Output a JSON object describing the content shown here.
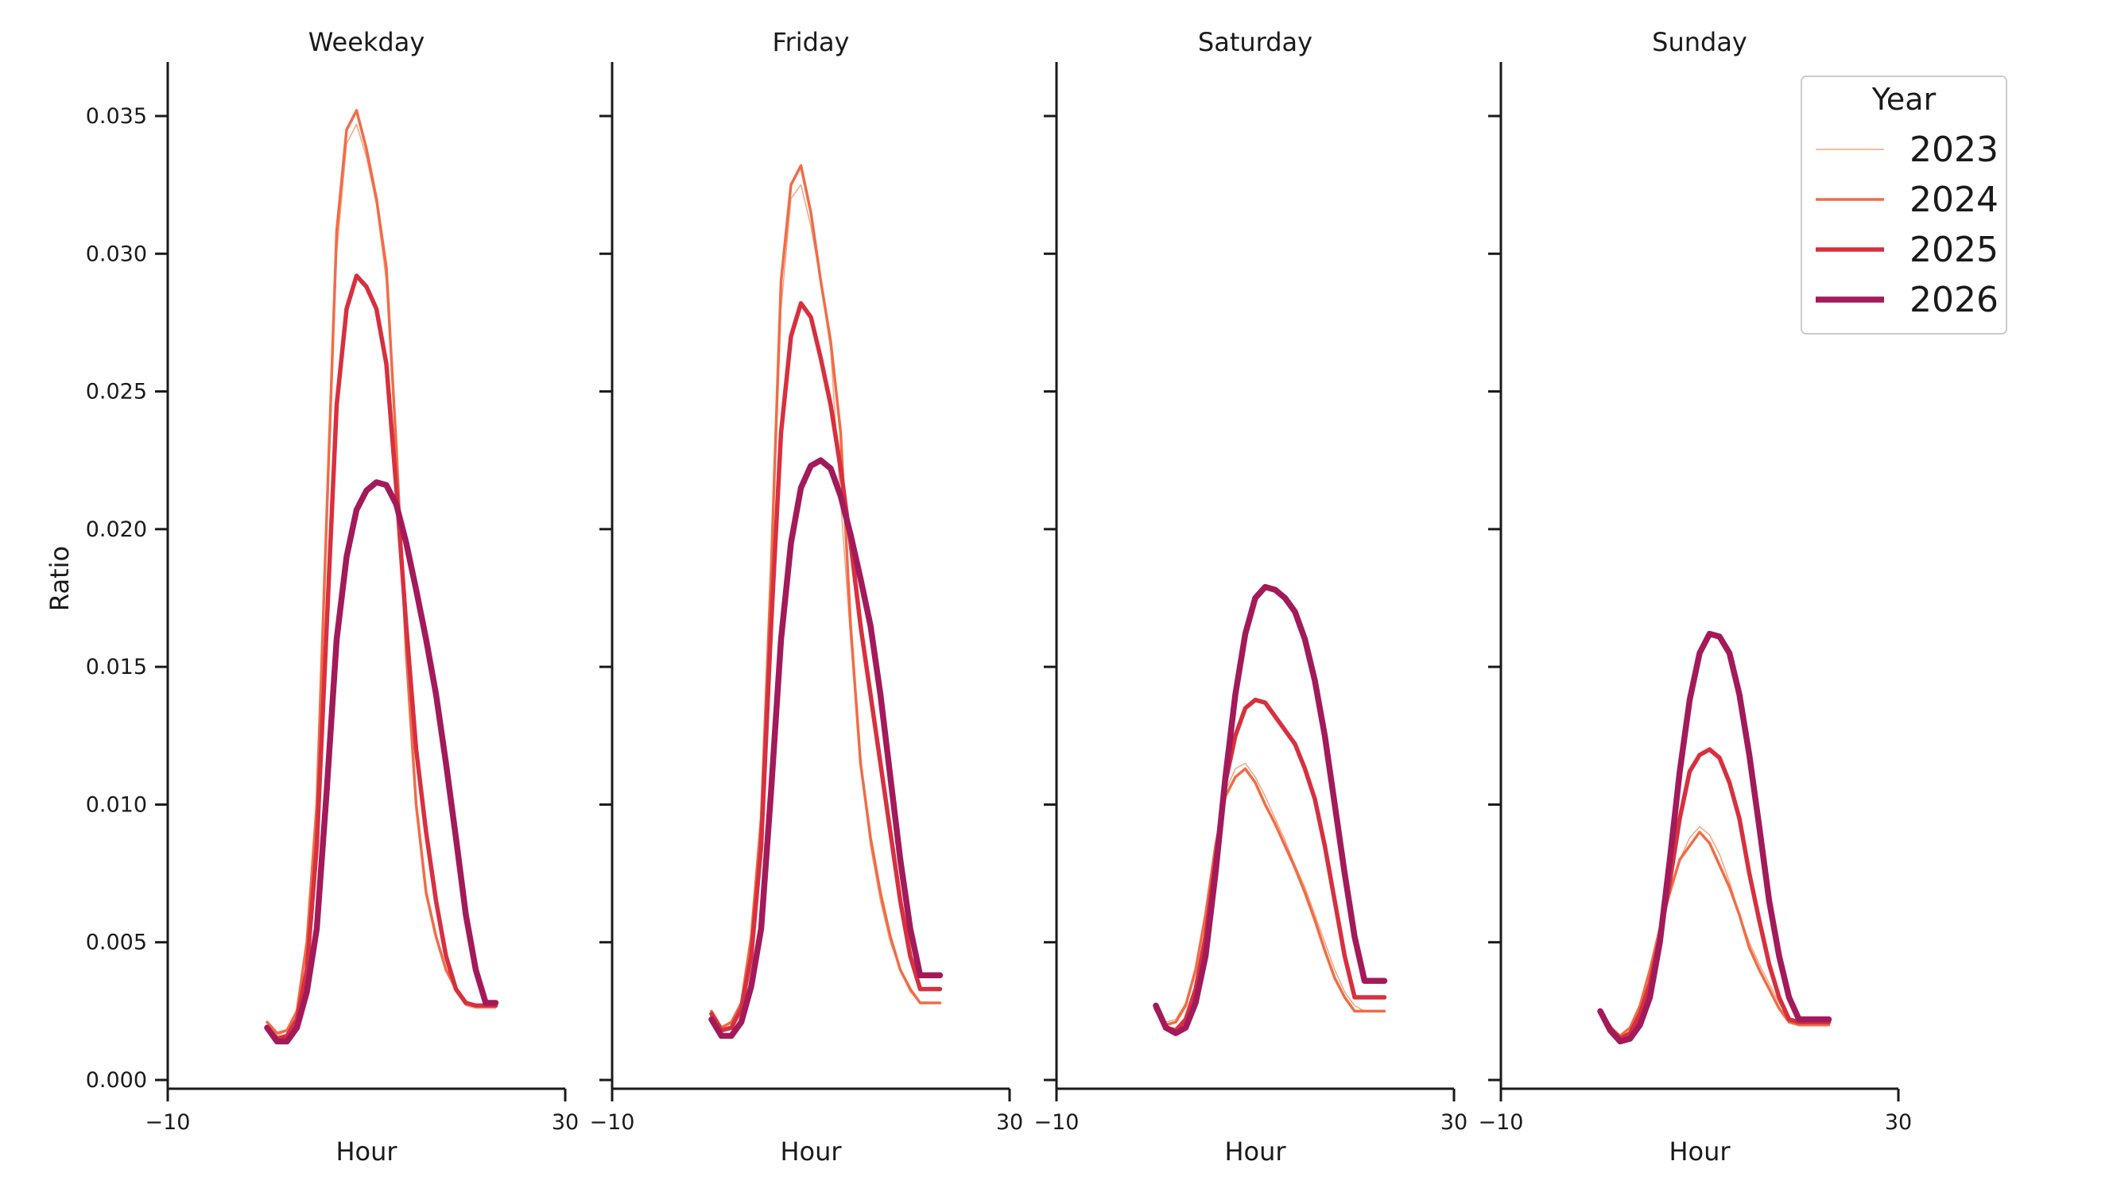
{
  "chart_data": {
    "type": "line",
    "ylabel": "Ratio",
    "ylim": [
      -0.0012,
      0.037
    ],
    "xlim": [
      -10,
      30
    ],
    "yticks": [
      {
        "value": 0.0,
        "label": "0.000"
      },
      {
        "value": 0.005,
        "label": "0.005"
      },
      {
        "value": 0.01,
        "label": "0.010"
      },
      {
        "value": 0.015,
        "label": "0.015"
      },
      {
        "value": 0.02,
        "label": "0.020"
      },
      {
        "value": 0.025,
        "label": "0.025"
      },
      {
        "value": 0.03,
        "label": "0.030"
      },
      {
        "value": 0.035,
        "label": "0.035"
      }
    ],
    "xticks": [
      {
        "value": -10,
        "label": "−10"
      },
      {
        "value": 30,
        "label": "30"
      }
    ],
    "legend": {
      "title": "Year",
      "position": "top-right",
      "entries": [
        {
          "name": "2023",
          "color": "#f4a582",
          "width": 1.5
        },
        {
          "name": "2024",
          "color": "#ef6d47",
          "width": 3.5
        },
        {
          "name": "2025",
          "color": "#d7303f",
          "width": 5.5
        },
        {
          "name": "2026",
          "color": "#a31a5a",
          "width": 7.5
        }
      ]
    },
    "panels": [
      {
        "title": "Weekday",
        "xlabel": "Hour",
        "x": [
          0,
          1,
          2,
          3,
          4,
          5,
          6,
          7,
          8,
          9,
          10,
          11,
          12,
          13,
          14,
          15,
          16,
          17,
          18,
          19,
          20,
          21,
          22,
          23
        ],
        "series": [
          {
            "name": "2023",
            "values": [
              0.002,
              0.0016,
              0.0018,
              0.0025,
              0.005,
              0.01,
              0.02,
              0.03,
              0.034,
              0.0347,
              0.0335,
              0.0318,
              0.029,
              0.023,
              0.016,
              0.01,
              0.0068,
              0.0052,
              0.004,
              0.0032,
              0.0027,
              0.0026,
              0.0026,
              0.0026
            ]
          },
          {
            "name": "2024",
            "values": [
              0.0021,
              0.0017,
              0.0018,
              0.0025,
              0.005,
              0.01,
              0.0205,
              0.0308,
              0.0345,
              0.0352,
              0.0338,
              0.032,
              0.0295,
              0.023,
              0.0155,
              0.01,
              0.0068,
              0.0052,
              0.004,
              0.0033,
              0.0028,
              0.0027,
              0.0027,
              0.0027
            ]
          },
          {
            "name": "2025",
            "values": [
              0.0019,
              0.0015,
              0.0016,
              0.0022,
              0.004,
              0.0085,
              0.0165,
              0.0245,
              0.028,
              0.0292,
              0.0288,
              0.028,
              0.026,
              0.0215,
              0.0165,
              0.012,
              0.009,
              0.0065,
              0.0045,
              0.0033,
              0.0028,
              0.0027,
              0.0027,
              0.0027
            ]
          },
          {
            "name": "2026",
            "values": [
              0.0019,
              0.0014,
              0.0014,
              0.0019,
              0.0032,
              0.0055,
              0.0105,
              0.016,
              0.019,
              0.0207,
              0.0214,
              0.0217,
              0.0216,
              0.0209,
              0.0195,
              0.0178,
              0.016,
              0.014,
              0.0115,
              0.0088,
              0.006,
              0.004,
              0.0028,
              0.0028
            ]
          }
        ]
      },
      {
        "title": "Friday",
        "xlabel": "Hour",
        "x": [
          0,
          1,
          2,
          3,
          4,
          5,
          6,
          7,
          8,
          9,
          10,
          11,
          12,
          13,
          14,
          15,
          16,
          17,
          18,
          19,
          20,
          21,
          22,
          23
        ],
        "series": [
          {
            "name": "2023",
            "values": [
              0.0025,
              0.0019,
              0.0021,
              0.0028,
              0.0052,
              0.0095,
              0.018,
              0.028,
              0.032,
              0.0325,
              0.031,
              0.029,
              0.0265,
              0.021,
              0.016,
              0.0115,
              0.0085,
              0.0065,
              0.005,
              0.004,
              0.0032,
              0.0028,
              0.0028,
              0.0028
            ]
          },
          {
            "name": "2024",
            "values": [
              0.0025,
              0.0019,
              0.0021,
              0.0028,
              0.0052,
              0.0095,
              0.0185,
              0.029,
              0.0325,
              0.0332,
              0.0315,
              0.029,
              0.0268,
              0.0235,
              0.0165,
              0.0115,
              0.0088,
              0.0068,
              0.0052,
              0.004,
              0.0033,
              0.0028,
              0.0028,
              0.0028
            ]
          },
          {
            "name": "2025",
            "values": [
              0.0024,
              0.0018,
              0.0019,
              0.0026,
              0.0045,
              0.0085,
              0.0165,
              0.0235,
              0.027,
              0.0282,
              0.0277,
              0.0262,
              0.0245,
              0.0222,
              0.0195,
              0.0165,
              0.014,
              0.0115,
              0.009,
              0.0065,
              0.0045,
              0.0033,
              0.0033,
              0.0033
            ]
          },
          {
            "name": "2026",
            "values": [
              0.0022,
              0.0016,
              0.0016,
              0.0021,
              0.0034,
              0.0055,
              0.0105,
              0.016,
              0.0195,
              0.0215,
              0.0223,
              0.0225,
              0.0222,
              0.0212,
              0.0198,
              0.0182,
              0.0165,
              0.014,
              0.011,
              0.008,
              0.0055,
              0.0038,
              0.0038,
              0.0038
            ]
          }
        ]
      },
      {
        "title": "Saturday",
        "xlabel": "Hour",
        "x": [
          0,
          1,
          2,
          3,
          4,
          5,
          6,
          7,
          8,
          9,
          10,
          11,
          12,
          13,
          14,
          15,
          16,
          17,
          18,
          19,
          20,
          21,
          22,
          23
        ],
        "series": [
          {
            "name": "2023",
            "values": [
              0.0026,
              0.0021,
              0.0022,
              0.0028,
              0.004,
              0.006,
              0.0085,
              0.0105,
              0.0113,
              0.0115,
              0.011,
              0.0103,
              0.0095,
              0.0087,
              0.0078,
              0.007,
              0.006,
              0.005,
              0.004,
              0.0032,
              0.0027,
              0.0025,
              0.0025,
              0.0025
            ]
          },
          {
            "name": "2024",
            "values": [
              0.0026,
              0.002,
              0.0021,
              0.0027,
              0.004,
              0.006,
              0.0085,
              0.0103,
              0.011,
              0.0113,
              0.0108,
              0.01,
              0.0093,
              0.0085,
              0.0077,
              0.0068,
              0.0058,
              0.0047,
              0.0037,
              0.003,
              0.0025,
              0.0025,
              0.0025,
              0.0025
            ]
          },
          {
            "name": "2025",
            "values": [
              0.0026,
              0.0019,
              0.0018,
              0.0022,
              0.0033,
              0.0052,
              0.008,
              0.0108,
              0.0125,
              0.0135,
              0.0138,
              0.0137,
              0.0132,
              0.0127,
              0.0122,
              0.0113,
              0.0102,
              0.0085,
              0.0065,
              0.0045,
              0.003,
              0.003,
              0.003,
              0.003
            ]
          },
          {
            "name": "2026",
            "values": [
              0.0027,
              0.0019,
              0.0017,
              0.0019,
              0.0028,
              0.0045,
              0.0075,
              0.011,
              0.014,
              0.0162,
              0.0175,
              0.0179,
              0.0178,
              0.0175,
              0.017,
              0.016,
              0.0145,
              0.0125,
              0.01,
              0.0075,
              0.0052,
              0.0036,
              0.0036,
              0.0036
            ]
          }
        ]
      },
      {
        "title": "Sunday",
        "xlabel": "Hour",
        "x": [
          0,
          1,
          2,
          3,
          4,
          5,
          6,
          7,
          8,
          9,
          10,
          11,
          12,
          13,
          14,
          15,
          16,
          17,
          18,
          19,
          20,
          21,
          22,
          23
        ],
        "series": [
          {
            "name": "2023",
            "values": [
              0.0024,
              0.0019,
              0.0016,
              0.0019,
              0.0027,
              0.004,
              0.0055,
              0.0068,
              0.008,
              0.0088,
              0.0092,
              0.0089,
              0.0082,
              0.0072,
              0.006,
              0.005,
              0.0042,
              0.0035,
              0.0028,
              0.0022,
              0.002,
              0.002,
              0.002,
              0.002
            ]
          },
          {
            "name": "2024",
            "values": [
              0.0024,
              0.0019,
              0.0016,
              0.0019,
              0.0027,
              0.004,
              0.0055,
              0.0068,
              0.008,
              0.0085,
              0.009,
              0.0086,
              0.0078,
              0.007,
              0.006,
              0.0048,
              0.004,
              0.0033,
              0.0026,
              0.0021,
              0.002,
              0.002,
              0.002,
              0.002
            ]
          },
          {
            "name": "2025",
            "values": [
              0.0025,
              0.0019,
              0.0015,
              0.0017,
              0.0024,
              0.0035,
              0.0052,
              0.0072,
              0.0095,
              0.0112,
              0.0118,
              0.012,
              0.0117,
              0.0108,
              0.0095,
              0.0075,
              0.0058,
              0.0042,
              0.003,
              0.0022,
              0.0021,
              0.0021,
              0.0021,
              0.0021
            ]
          },
          {
            "name": "2026",
            "values": [
              0.0025,
              0.0018,
              0.0014,
              0.0015,
              0.002,
              0.003,
              0.005,
              0.008,
              0.0112,
              0.0138,
              0.0155,
              0.0162,
              0.0161,
              0.0155,
              0.014,
              0.0118,
              0.0092,
              0.0065,
              0.0045,
              0.003,
              0.0022,
              0.0022,
              0.0022,
              0.0022
            ]
          }
        ]
      }
    ]
  }
}
